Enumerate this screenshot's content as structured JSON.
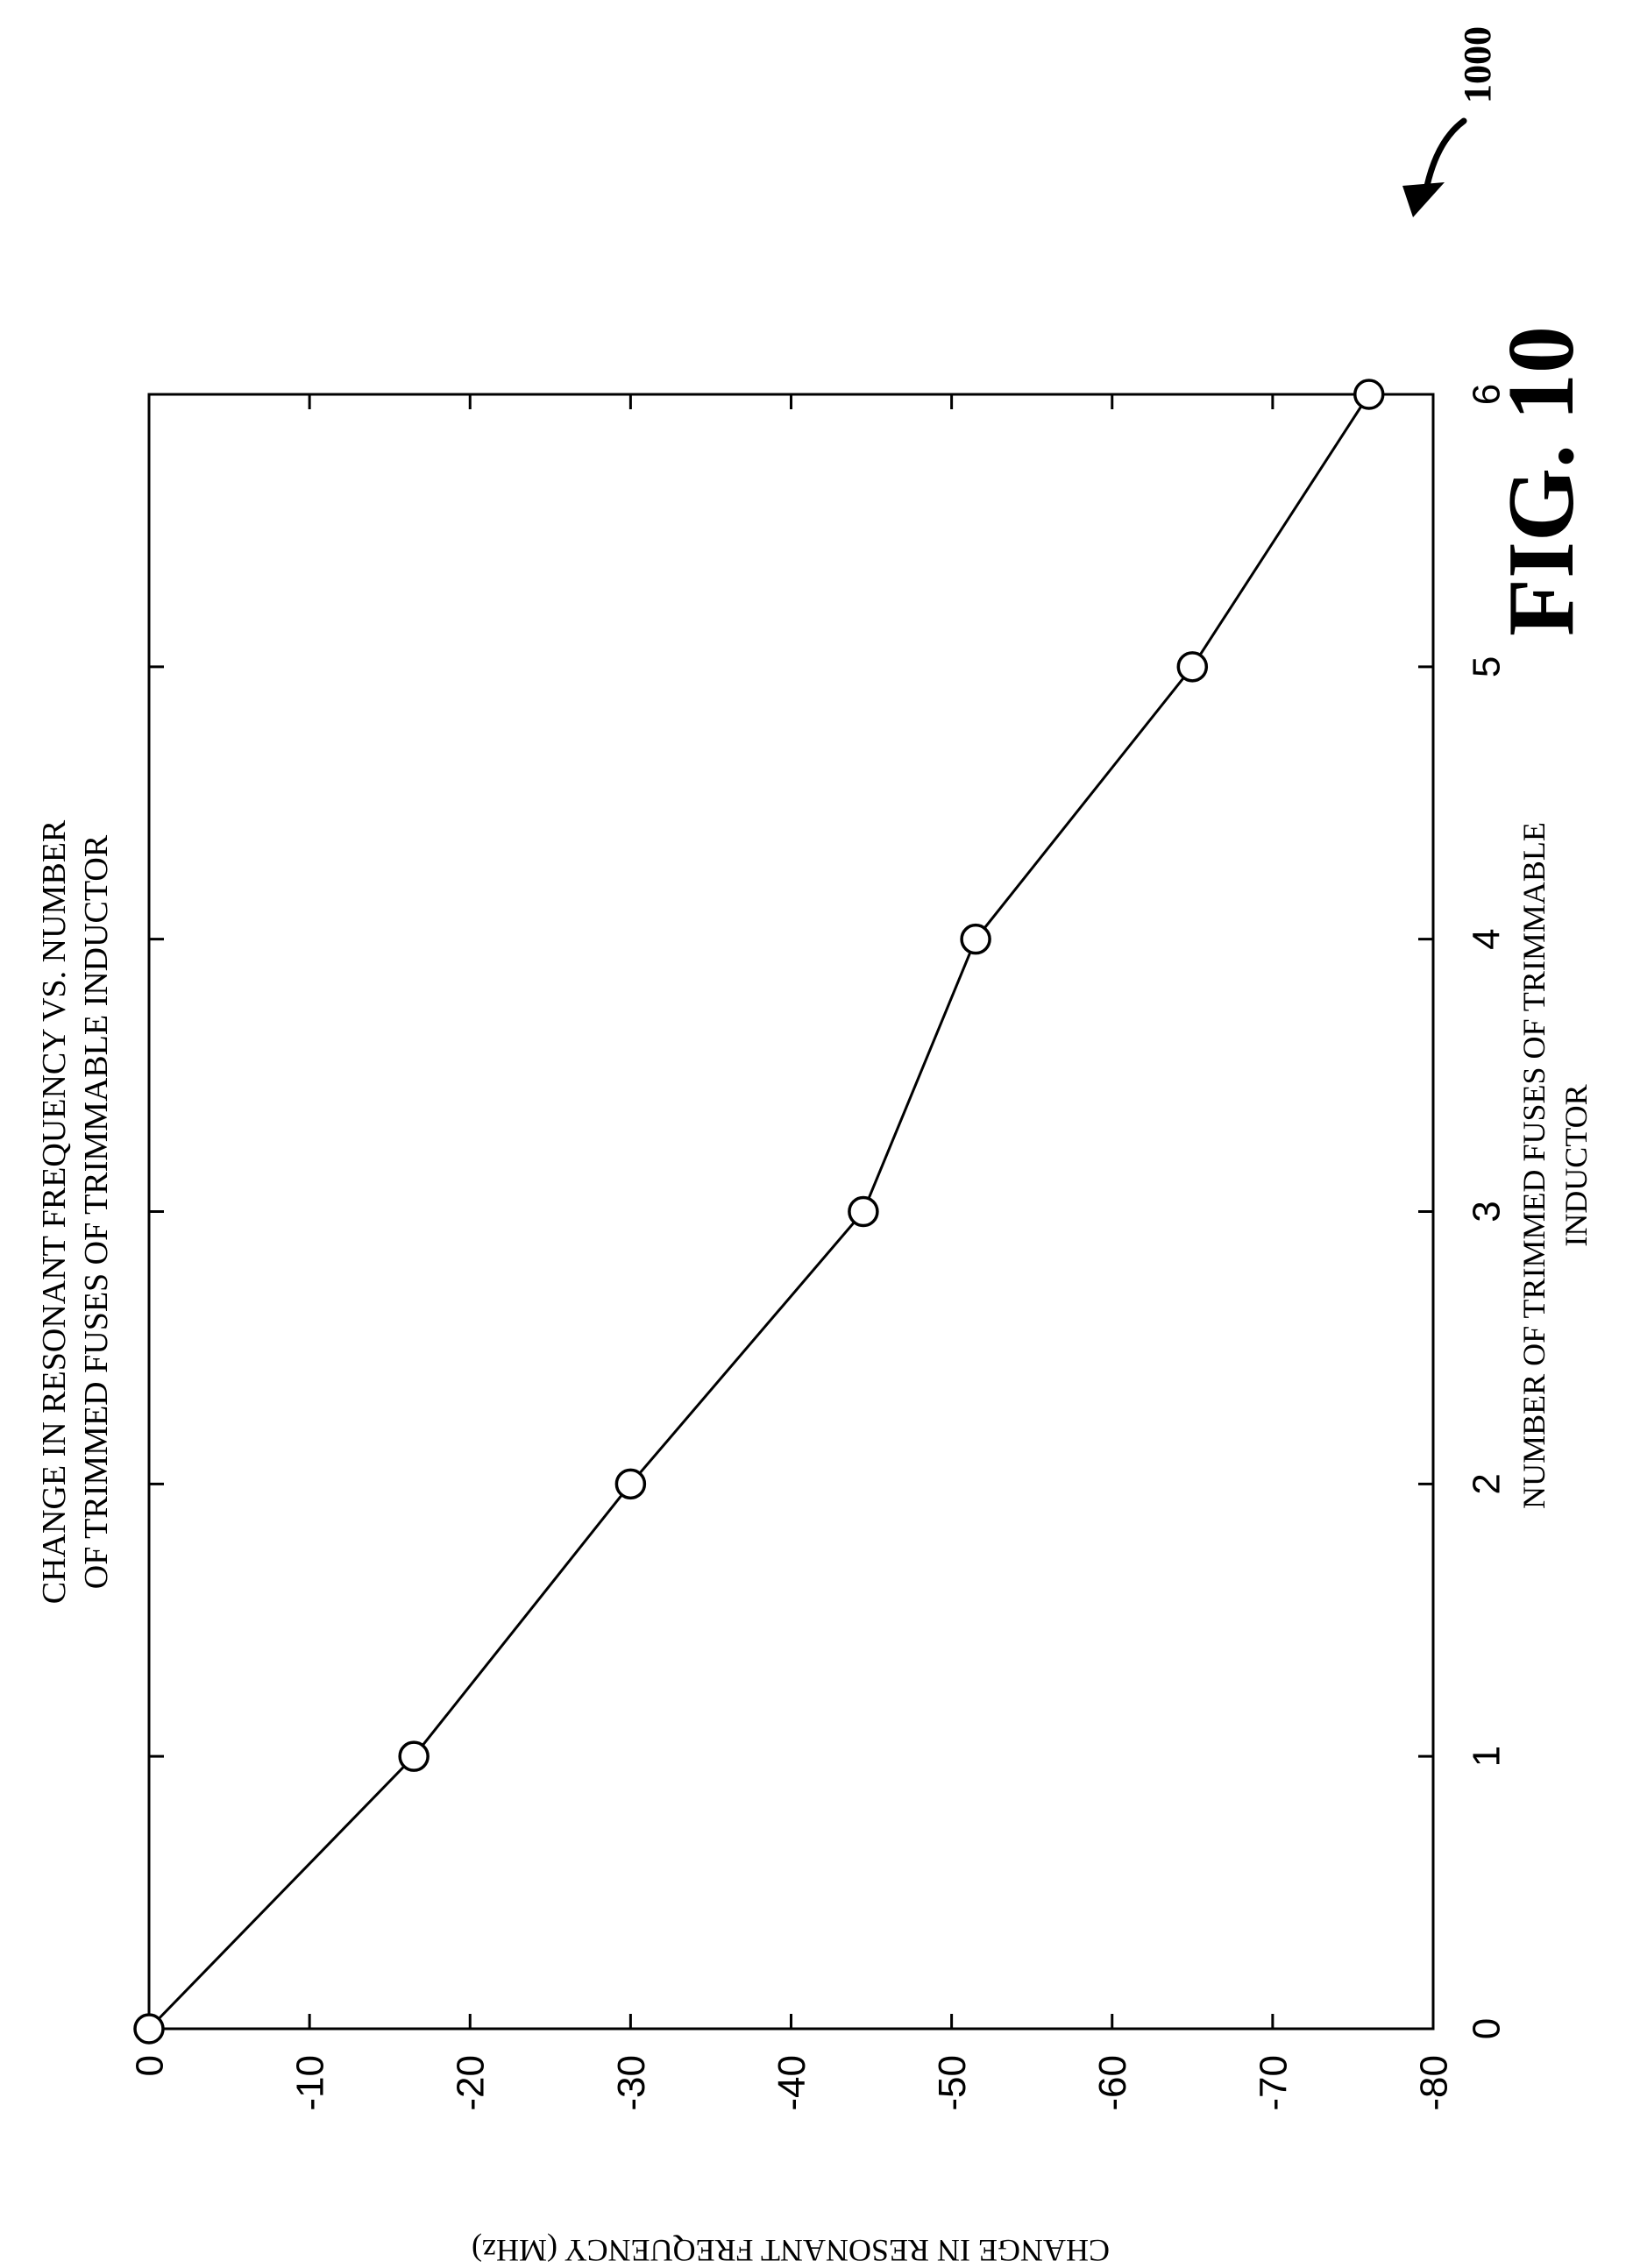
{
  "figure": {
    "ref_number": "1000",
    "fig_label": "FIG. 10"
  },
  "chart_data": {
    "type": "line",
    "title_lines": [
      "CHANGE IN RESONANT FREQUENCY VS. NUMBER",
      "OF TRIMMED FUSES OF TRIMMABLE INDUCTOR"
    ],
    "xlabel_lines": [
      "NUMBER OF TRIMMED FUSES OF TRIMMABLE",
      "INDUCTOR"
    ],
    "ylabel": "CHANGE IN RESONANT FREQUENCY (MHz)",
    "x": [
      0,
      1,
      2,
      3,
      4,
      5,
      6
    ],
    "series": [
      {
        "values": [
          0,
          -16.5,
          -30,
          -44.5,
          -51.5,
          -65,
          -76
        ]
      }
    ],
    "xlim": [
      0,
      6
    ],
    "ylim": [
      -80,
      0
    ],
    "xticks": [
      "0",
      "1",
      "2",
      "3",
      "4",
      "5",
      "6"
    ],
    "yticks": [
      "0",
      "-10",
      "-20",
      "-30",
      "-40",
      "-50",
      "-60",
      "-70",
      "-80"
    ],
    "grid": false,
    "marker": "open-circle",
    "orientation": "rotated-90-clockwise"
  }
}
